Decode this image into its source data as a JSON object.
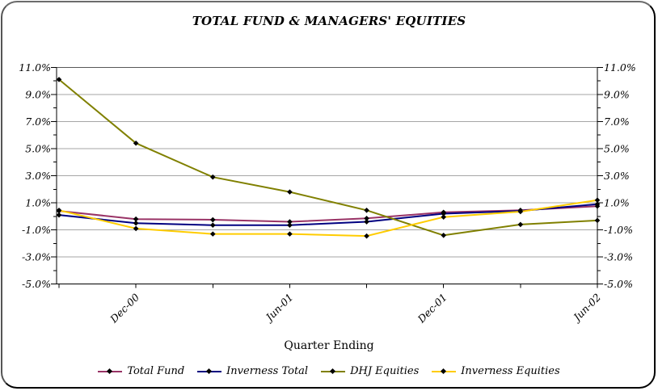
{
  "title": "TOTAL FUND & MANAGERS' EQUITIES",
  "x_axis_title": "Quarter Ending",
  "chart_data": {
    "type": "line",
    "categories": [
      "",
      "Dec-00",
      "",
      "Jun-01",
      "",
      "Dec-01",
      "",
      "Jun-02"
    ],
    "x_tick_labels_visible": [
      "Dec-00",
      "Jun-01",
      "Dec-01",
      "Jun-02"
    ],
    "series": [
      {
        "name": "Total Fund",
        "color": "#993366",
        "values": [
          0.4,
          -0.2,
          -0.25,
          -0.4,
          -0.15,
          0.3,
          0.45,
          0.75
        ]
      },
      {
        "name": "Inverness Total",
        "color": "#000080",
        "values": [
          0.1,
          -0.5,
          -0.65,
          -0.65,
          -0.4,
          0.2,
          0.4,
          0.9
        ]
      },
      {
        "name": "DHJ Equities",
        "color": "#808000",
        "values": [
          10.1,
          5.4,
          2.9,
          1.8,
          0.45,
          -1.4,
          -0.6,
          -0.3
        ]
      },
      {
        "name": "Inverness Equities",
        "color": "#FFCC00",
        "values": [
          0.45,
          -0.9,
          -1.3,
          -1.3,
          -1.45,
          -0.05,
          0.35,
          1.2
        ]
      }
    ],
    "xlabel": "Quarter Ending",
    "ylabel": "",
    "ylim": [
      -5,
      11
    ],
    "y_major_ticks": [
      11,
      9,
      7,
      5,
      3,
      1,
      -1,
      -3,
      -5
    ],
    "y_tick_labels": [
      "11.0%",
      "9.0%",
      "7.0%",
      "5.0%",
      "3.0%",
      "1.0%",
      "-1.0%",
      "-3.0%",
      "-5.0%"
    ],
    "y_minor_tick_step": 1,
    "grid": "horizontal",
    "gridline_color": "#a6a6a6",
    "top_line_color": "#595959",
    "axis_color": "#000000",
    "marker": "diamond",
    "marker_color": "#000000",
    "legend_position": "bottom",
    "y_labels_both_sides": true
  }
}
